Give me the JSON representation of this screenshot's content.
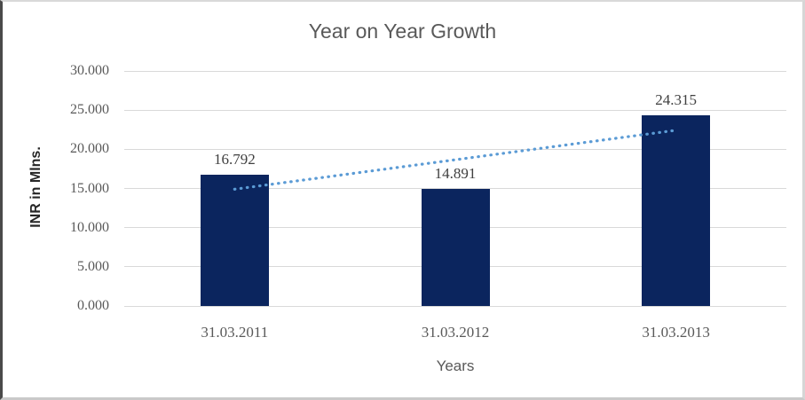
{
  "chart_data": {
    "type": "bar",
    "title": "Year on Year Growth",
    "xlabel": "Years",
    "ylabel": "INR in Mlns.",
    "categories": [
      "31.03.2011",
      "31.03.2012",
      "31.03.2013"
    ],
    "values": [
      16.792,
      14.891,
      24.315
    ],
    "value_labels": [
      "16.792",
      "14.891",
      "24.315"
    ],
    "ylim": [
      0,
      30
    ],
    "ytick_step": 5,
    "ytick_labels": [
      "0.000",
      "5.000",
      "10.000",
      "15.000",
      "20.000",
      "25.000",
      "30.000"
    ],
    "grid": true,
    "legend": "none",
    "trendline": {
      "type": "linear",
      "style": "dotted",
      "start_value": 14.904,
      "end_value": 22.428
    },
    "colors": {
      "bar": "#0B255E",
      "trendline": "#5B9BD5",
      "gridline": "#d9d9d9",
      "title_text": "#595959",
      "tick_text": "#595959",
      "value_label_text": "#404040",
      "y_axis_title_text": "#262626"
    }
  }
}
